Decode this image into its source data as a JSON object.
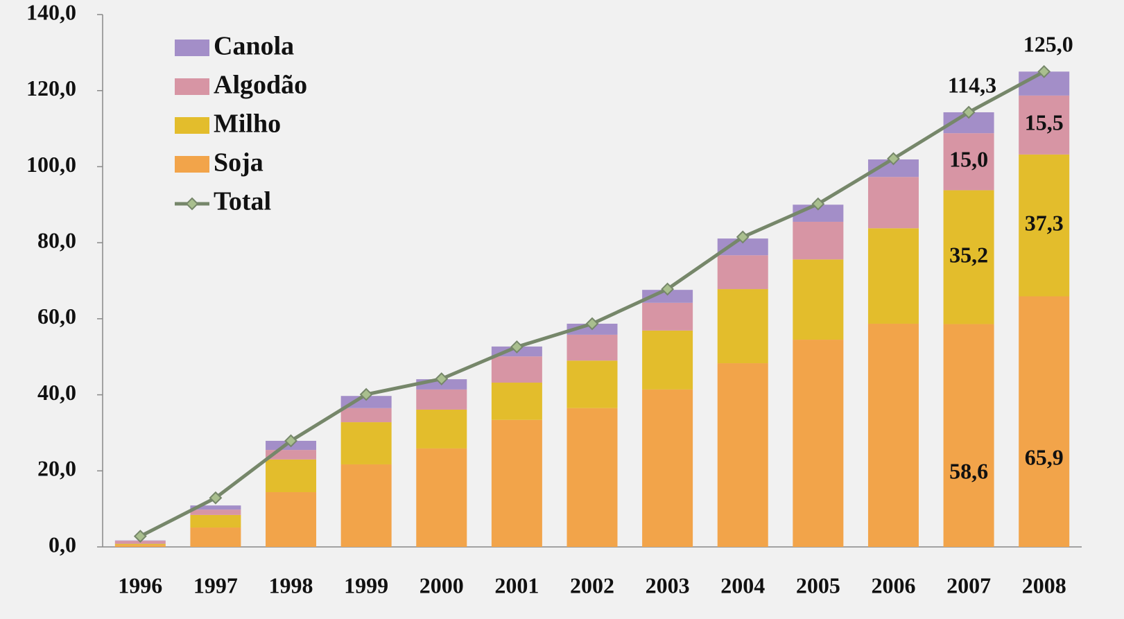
{
  "chart_data": {
    "type": "bar",
    "stacked": true,
    "categories": [
      "1996",
      "1997",
      "1998",
      "1999",
      "2000",
      "2001",
      "2002",
      "2003",
      "2004",
      "2005",
      "2006",
      "2007",
      "2008"
    ],
    "series": [
      {
        "name": "Soja",
        "color": "#f2a44a",
        "values": [
          0.5,
          5.1,
          14.4,
          21.7,
          25.9,
          33.4,
          36.5,
          41.4,
          48.3,
          54.5,
          58.7,
          58.6,
          65.9
        ],
        "value_labels": [
          null,
          null,
          null,
          null,
          null,
          null,
          null,
          null,
          null,
          null,
          null,
          "58,6",
          "65,9"
        ]
      },
      {
        "name": "Milho",
        "color": "#e3bd2c",
        "values": [
          0.3,
          3.3,
          8.6,
          11.1,
          10.2,
          9.8,
          12.5,
          15.5,
          19.5,
          21.1,
          25.1,
          35.2,
          37.3
        ],
        "value_labels": [
          null,
          null,
          null,
          null,
          null,
          null,
          null,
          null,
          null,
          null,
          null,
          "35,2",
          "37,3"
        ]
      },
      {
        "name": "Algodão",
        "color": "#d795a4",
        "values": [
          0.8,
          1.4,
          2.5,
          3.7,
          5.3,
          6.9,
          6.8,
          7.3,
          8.9,
          9.9,
          13.5,
          15.0,
          15.5
        ],
        "value_labels": [
          null,
          null,
          null,
          null,
          null,
          null,
          null,
          null,
          null,
          null,
          null,
          "15,0",
          "15,5"
        ]
      },
      {
        "name": "Canola",
        "color": "#a38ec8",
        "values": [
          0.1,
          1.1,
          2.4,
          3.2,
          2.7,
          2.6,
          2.9,
          3.4,
          4.4,
          4.5,
          4.6,
          5.5,
          6.3
        ]
      },
      {
        "name": "Total",
        "type": "line",
        "color": "#76876a",
        "marker_color": "#a9bf8e",
        "values": [
          2.8,
          12.9,
          27.9,
          40.1,
          44.2,
          52.6,
          58.7,
          67.8,
          81.5,
          90.2,
          102.1,
          114.3,
          125.0
        ],
        "value_labels": [
          null,
          null,
          null,
          null,
          null,
          null,
          null,
          null,
          null,
          null,
          null,
          "114,3",
          "125,0"
        ]
      }
    ],
    "ylim": [
      0,
      140
    ],
    "yticks": [
      {
        "value": 0,
        "label": "0,0"
      },
      {
        "value": 20,
        "label": "20,0"
      },
      {
        "value": 40,
        "label": "40,0"
      },
      {
        "value": 60,
        "label": "60,0"
      },
      {
        "value": 80,
        "label": "80,0"
      },
      {
        "value": 100,
        "label": "100,0"
      },
      {
        "value": 120,
        "label": "120,0"
      },
      {
        "value": 140,
        "label": "140,0"
      }
    ],
    "grid": false,
    "legend_position": "top-left"
  }
}
